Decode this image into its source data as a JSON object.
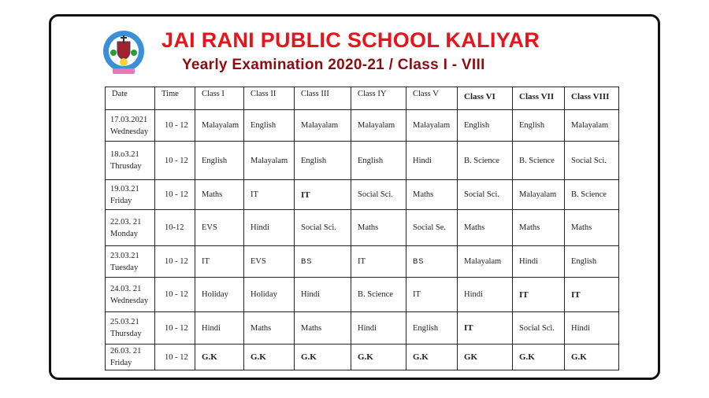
{
  "header": {
    "title": "JAI RANI PUBLIC SCHOOL KALIYAR",
    "subtitle": "Yearly Examination 2020-21 / Class I - VIII"
  },
  "colors": {
    "title": "#e8141b",
    "subtitle": "#8b0d12"
  },
  "table": {
    "headers": [
      "Date",
      "Time",
      "Class I",
      "Class II",
      "Class III",
      "Class IY",
      "Class V",
      "Class VI",
      "Class VII",
      "Class VIII"
    ],
    "rows": [
      {
        "date": "17.03.2021",
        "day": "Wednesday",
        "time": "10  - 12",
        "subjects": [
          "Malayalam",
          "English",
          "Malayalam",
          "Malayalam",
          "Malayalam",
          "English",
          "English",
          "Malayalam"
        ]
      },
      {
        "date": "18.o3.21",
        "day": "Thrusday",
        "time": "10 - 12",
        "subjects": [
          "English",
          "Malayalam",
          "English",
          "English",
          "Hindi",
          "B. Science",
          "B. Science",
          "Social Sci."
        ]
      },
      {
        "date": "19.03.21",
        "day": "Friday",
        "time": "10 - 12",
        "subjects": [
          "Maths",
          "IT",
          "IT",
          "Social Sci.",
          "Maths",
          "Social Sci.",
          "Malayalam",
          "B. Science"
        ]
      },
      {
        "date": "22.03. 21",
        "day": "Monday",
        "time": "10-12",
        "subjects": [
          "EVS",
          "Hindi",
          "Social Sci.",
          "Maths",
          "Social Se.",
          "Maths",
          "Maths",
          "Maths"
        ]
      },
      {
        "date": "23.03.21",
        "day": "Tuesday",
        "time": "10 - 12",
        "subjects": [
          "IT",
          "EVS",
          "BS",
          "IT",
          "BS",
          "Malayalam",
          "Hindi",
          "English"
        ]
      },
      {
        "date": "24.03. 21",
        "day": "Wednesday",
        "time": "10 - 12",
        "subjects": [
          "Holiday",
          "Holiday",
          "Hindi",
          "B. Science",
          "IT",
          "Hindi",
          "IT",
          "IT"
        ]
      },
      {
        "date": "25.03.21",
        "day": "Thursday",
        "time": "10 - 12",
        "subjects": [
          "Hindi",
          "Maths",
          "Maths",
          "Hindi",
          "English",
          "IT",
          "Social Sci.",
          "Hindi"
        ]
      },
      {
        "date": "26.03. 21",
        "day": "Friday",
        "time": "10 - 12",
        "subjects": [
          "G.K",
          "G.K",
          "G.K",
          "G.K",
          "G.K",
          "GK",
          "G.K",
          "G.K"
        ]
      }
    ]
  }
}
